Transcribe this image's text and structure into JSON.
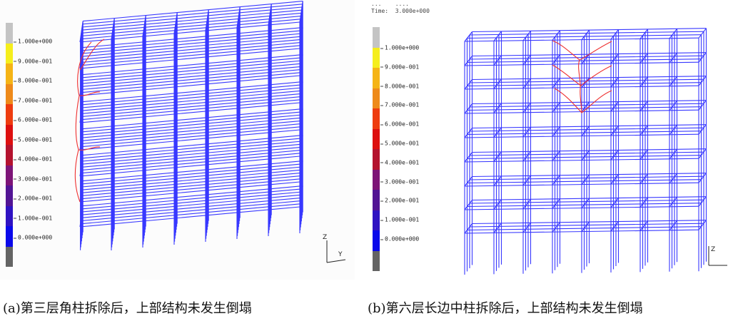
{
  "panel_a": {
    "legend_ticks": [
      "1.000e+000",
      "9.000e-001",
      "8.000e-001",
      "7.000e-001",
      "6.000e-001",
      "5.000e-001",
      "4.000e-001",
      "3.000e-001",
      "2.000e-001",
      "1.000e-001",
      "0.000e+000"
    ],
    "axis_z": "Z",
    "axis_y": "Y"
  },
  "panel_b": {
    "header_line1": "...    ....",
    "header_time": "Time:  3.000e+000",
    "legend_ticks": [
      "1.000e+000",
      "9.000e-001",
      "8.000e-001",
      "7.000e-001",
      "6.000e-001",
      "5.000e-001",
      "4.000e-001",
      "3.000e-001",
      "2.000e-001",
      "1.000e-001",
      "0.000e+000"
    ],
    "axis_z": "Z"
  },
  "legend_colors": [
    "#c4c4c4",
    "#f5ee1c",
    "#f5b415",
    "#ee8a1a",
    "#ee3c0f",
    "#dd0f0f",
    "#b4122e",
    "#7d1477",
    "#521494",
    "#2f12c2",
    "#0a08ea",
    "#646464"
  ],
  "wire_color": "#3838ff",
  "highlight_color": "#ee3030",
  "captions": {
    "a": "(a)第三层角柱拆除后，上部结构未发生倒塌",
    "b": "(b)第六层长边中柱拆除后，上部结构未发生倒塌"
  }
}
